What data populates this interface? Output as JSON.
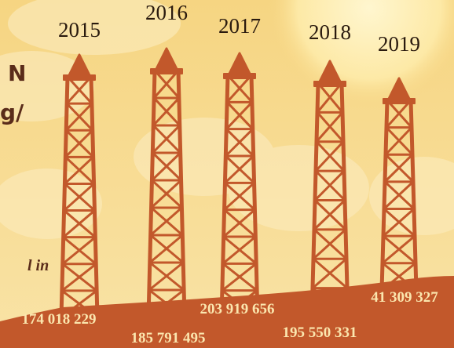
{
  "fragments": [
    "N",
    "g/",
    "l in"
  ],
  "items": [
    {
      "year": "2015",
      "value": "174 018 229"
    },
    {
      "year": "2016",
      "value": "185 791 495"
    },
    {
      "year": "2017",
      "value": "203 919 656"
    },
    {
      "year": "2018",
      "value": "195 550 331"
    },
    {
      "year": "2019",
      "value": "41 309 327"
    }
  ]
}
